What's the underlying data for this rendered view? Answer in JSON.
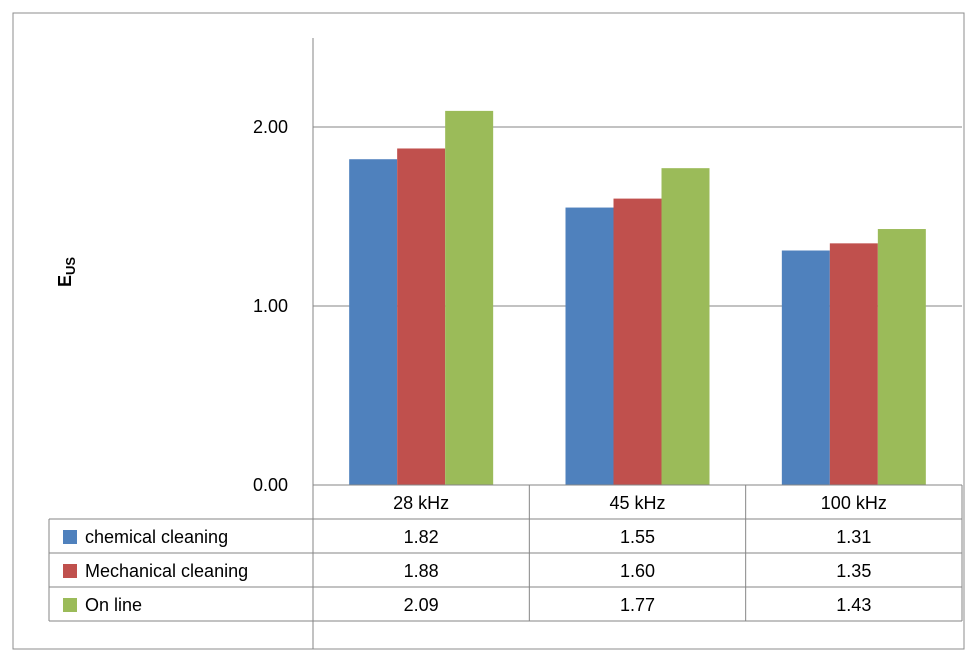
{
  "chart_data": {
    "type": "bar",
    "title": "",
    "xlabel": "",
    "ylabel": "E",
    "ylabel_subscript": "US",
    "ylim": [
      0,
      2.5
    ],
    "yticks": [
      "0.00",
      "1.00",
      "2.00"
    ],
    "grid": true,
    "legend": "data-table-rows",
    "categories": [
      "28 kHz",
      "45 kHz",
      "100 kHz"
    ],
    "series": [
      {
        "name": "chemical cleaning",
        "color": "#4F81BD",
        "values": [
          1.82,
          1.55,
          1.31
        ],
        "labels": [
          "1.82",
          "1.55",
          "1.31"
        ]
      },
      {
        "name": "Mechanical cleaning",
        "color": "#C0504D",
        "values": [
          1.88,
          1.6,
          1.35
        ],
        "labels": [
          "1.88",
          "1.60",
          "1.35"
        ]
      },
      {
        "name": "On line",
        "color": "#9BBB59",
        "values": [
          2.09,
          1.77,
          1.43
        ],
        "labels": [
          "2.09",
          "1.77",
          "1.43"
        ]
      }
    ]
  }
}
